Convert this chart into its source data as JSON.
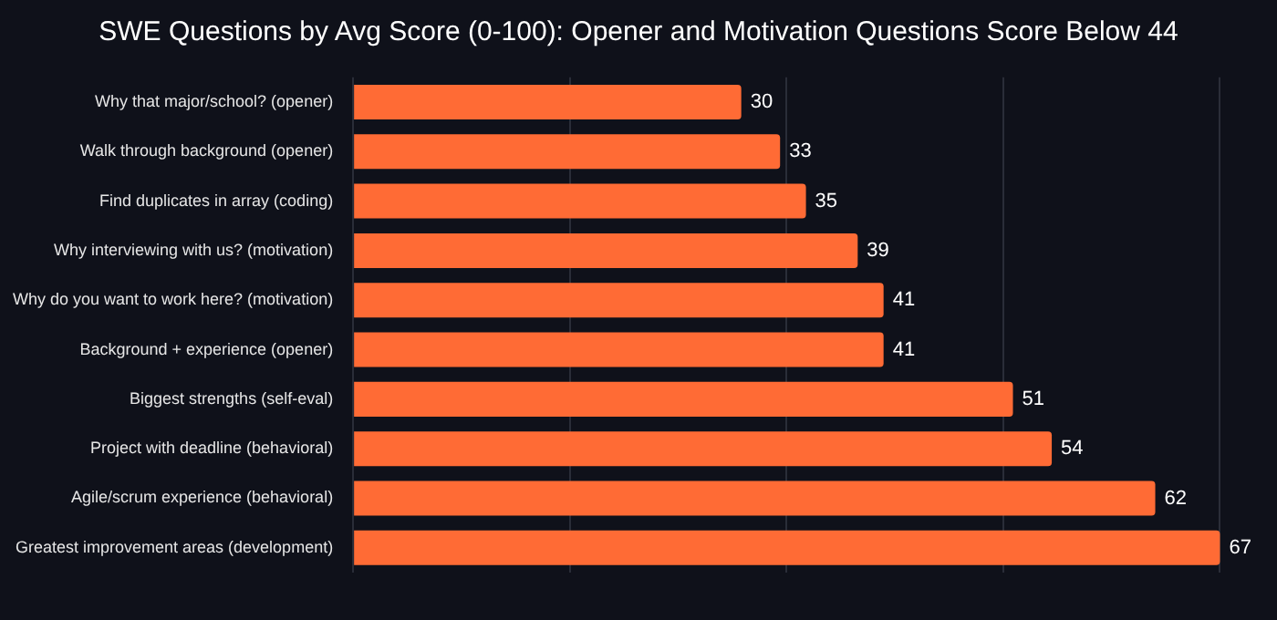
{
  "chart_data": {
    "type": "bar",
    "orientation": "horizontal",
    "title": "SWE Questions by Avg Score (0-100): Opener and Motivation Questions Score Below 44",
    "categories": [
      "Why that major/school? (opener)",
      "Walk through background (opener)",
      "Find duplicates in array (coding)",
      "Why interviewing with us? (motivation)",
      "Why do you want to work here? (motivation)",
      "Background + experience (opener)",
      "Biggest strengths (self-eval)",
      "Project with deadline (behavioral)",
      "Agile/scrum experience (behavioral)",
      "Greatest improvement areas (development)"
    ],
    "values": [
      30,
      33,
      35,
      39,
      41,
      41,
      51,
      54,
      62,
      67
    ],
    "color": "#ff6b35",
    "data_labels": true,
    "xticks": [
      {
        "value": 0,
        "label": null
      },
      {
        "value": 16.75,
        "label": null
      },
      {
        "value": 33.5,
        "label": null
      },
      {
        "value": 50.25,
        "label": null
      },
      {
        "value": 67,
        "label": null
      }
    ],
    "grid": "x",
    "legend": false,
    "tick_labels": "y"
  }
}
